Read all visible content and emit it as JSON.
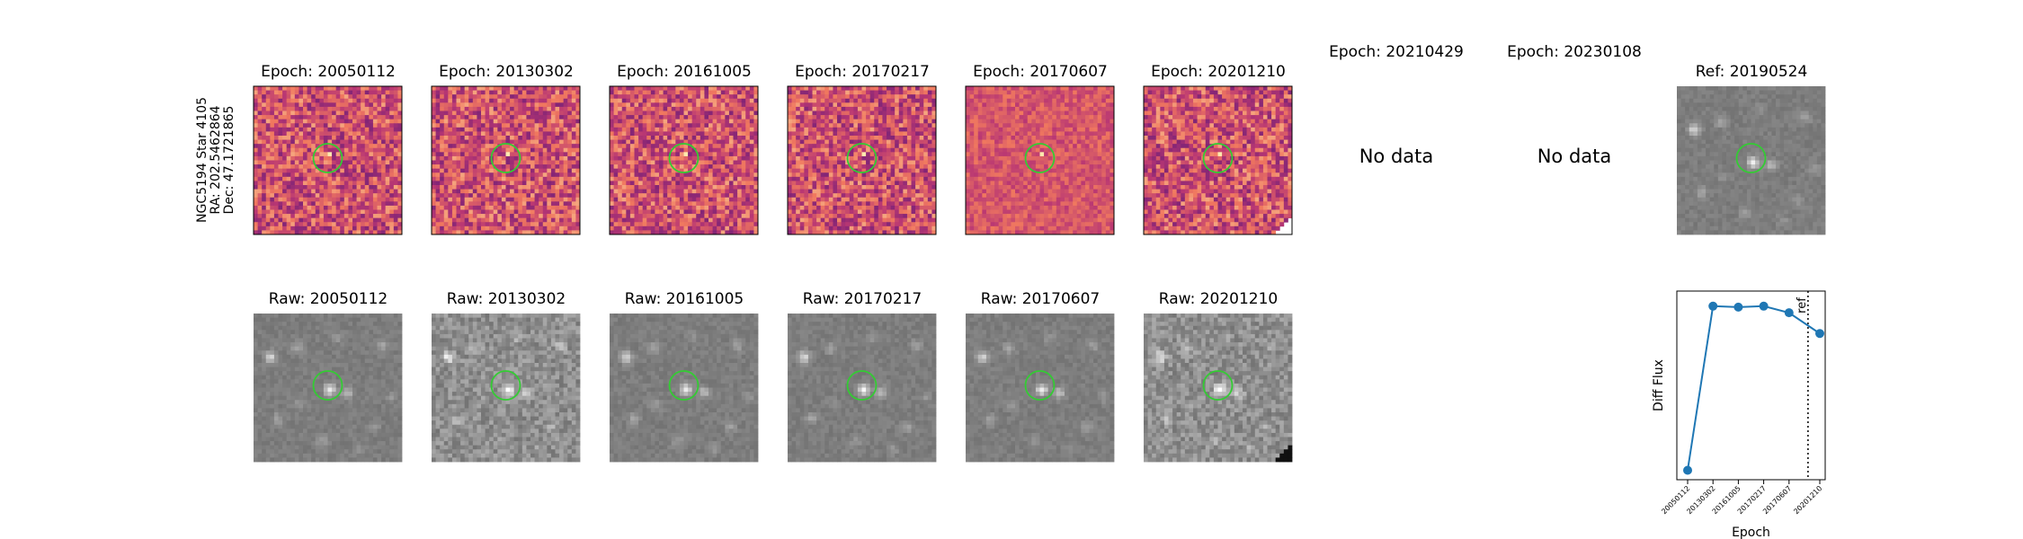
{
  "figure": {
    "target_label": [
      "NGC5194 Star 4105",
      "RA: 202.5462864",
      "Dec: 47.1721865"
    ],
    "diff_panels": [
      {
        "title": "Epoch: 20050112",
        "has_data": true
      },
      {
        "title": "Epoch: 20130302",
        "has_data": true
      },
      {
        "title": "Epoch: 20161005",
        "has_data": true
      },
      {
        "title": "Epoch: 20170217",
        "has_data": true
      },
      {
        "title": "Epoch: 20170607",
        "has_data": true
      },
      {
        "title": "Epoch: 20201210",
        "has_data": true
      },
      {
        "title": "Epoch: 20210429",
        "has_data": false
      },
      {
        "title": "Epoch: 20230108",
        "has_data": false
      }
    ],
    "no_data_text": "No data",
    "ref_panel": {
      "title": "Ref: 20190524"
    },
    "raw_panels": [
      {
        "title": "Raw: 20050112"
      },
      {
        "title": "Raw: 20130302"
      },
      {
        "title": "Raw: 20161005"
      },
      {
        "title": "Raw: 20170217"
      },
      {
        "title": "Raw: 20170607"
      },
      {
        "title": "Raw: 20201210"
      }
    ],
    "colors": {
      "aperture_circle": "#33cc33",
      "line_series": "#1f77b4",
      "diff_cmap_low": "#2a0f55",
      "diff_cmap_high": "#fdebb0"
    }
  },
  "chart_data": {
    "type": "line",
    "x": [
      "20050112",
      "20130302",
      "20161005",
      "20170217",
      "20170607",
      "20201210"
    ],
    "series": [
      {
        "values": [
          0.05,
          0.92,
          0.915,
          0.92,
          0.885,
          0.775
        ],
        "marker": "circle"
      }
    ],
    "xlabel": "Epoch",
    "ylabel": "Diff Flux",
    "ref_line": {
      "label": "ref",
      "x_between": [
        "20170607",
        "20201210"
      ],
      "style": "dotted"
    },
    "y_ticks_visible": false
  }
}
